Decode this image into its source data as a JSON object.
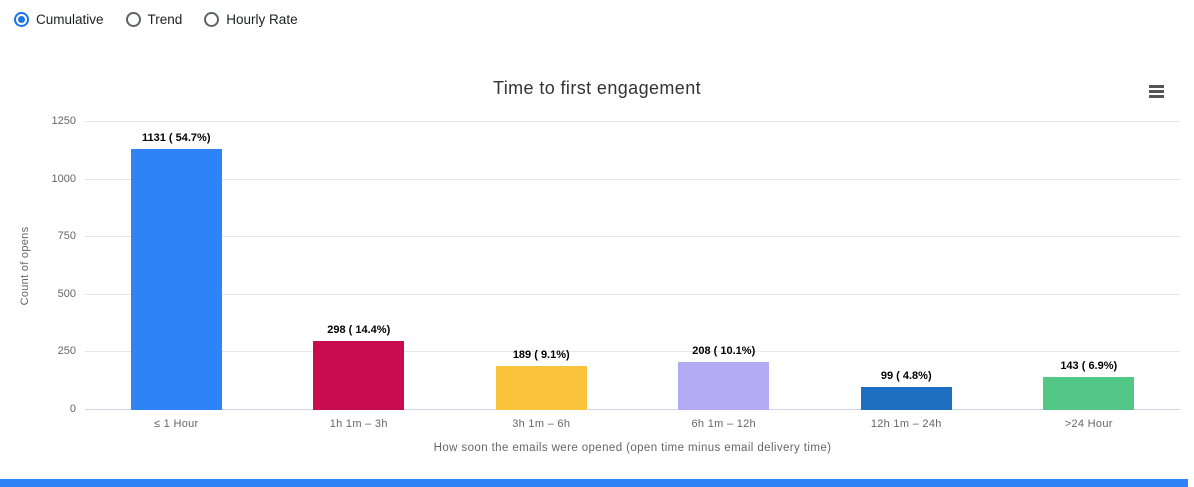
{
  "controls": {
    "options": [
      {
        "label": "Cumulative",
        "selected": true
      },
      {
        "label": "Trend",
        "selected": false
      },
      {
        "label": "Hourly Rate",
        "selected": false
      }
    ]
  },
  "chart_data": {
    "type": "bar",
    "title": "Time to first engagement",
    "categories": [
      "≤ 1 Hour",
      "1h 1m – 3h",
      "3h 1m – 6h",
      "6h 1m – 12h",
      "12h 1m – 24h",
      ">24 Hour"
    ],
    "values": [
      1131,
      298,
      189,
      208,
      99,
      143
    ],
    "percentages": [
      54.7,
      14.4,
      9.1,
      10.1,
      4.8,
      6.9
    ],
    "data_labels": [
      "1131 ( 54.7%)",
      "298 ( 14.4%)",
      "189 ( 9.1%)",
      "208 ( 10.1%)",
      "99 ( 4.8%)",
      "143 ( 6.9%)"
    ],
    "bar_colors": [
      "#2e83f6",
      "#c90c4f",
      "#f9c33c",
      "#b2abf4",
      "#1d6fc2",
      "#53c785"
    ],
    "xlabel": "How soon the emails were opened (open time minus email delivery time)",
    "ylabel": "Count of opens",
    "ylim": [
      0,
      1250
    ],
    "yticks": [
      0,
      250,
      500,
      750,
      1000,
      1250
    ],
    "grid": true,
    "legend": "none"
  },
  "colors": {
    "accent": "#1a73e8",
    "scrollbar": "#2e83f6",
    "gridline": "#e6e6e6"
  }
}
